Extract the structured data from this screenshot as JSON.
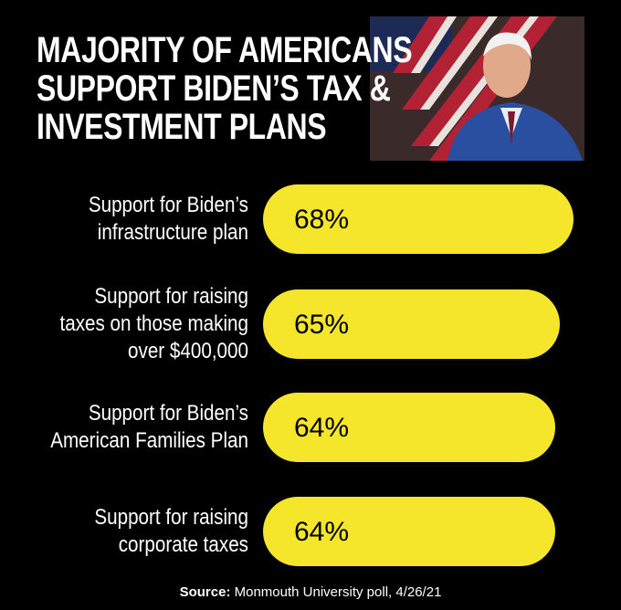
{
  "chart_data": {
    "type": "bar",
    "orientation": "horizontal",
    "title": "MAJORITY OF AMERICANS\nSUPPORT BIDEN’S TAX &\nINVESTMENT PLANS",
    "categories": [
      "Support for Biden’s\ninfrastructure plan",
      "Support for raising\ntaxes on those making\nover $400,000",
      "Support for Biden’s\nAmerican Families Plan",
      "Support for raising\ncorporate taxes"
    ],
    "values": [
      68,
      65,
      64,
      64
    ],
    "value_labels": [
      "68%",
      "65%",
      "64%",
      "64%"
    ],
    "color": "#f5e62c",
    "source_label": "Source:",
    "source": "Monmouth University poll, 4/26/21"
  }
}
